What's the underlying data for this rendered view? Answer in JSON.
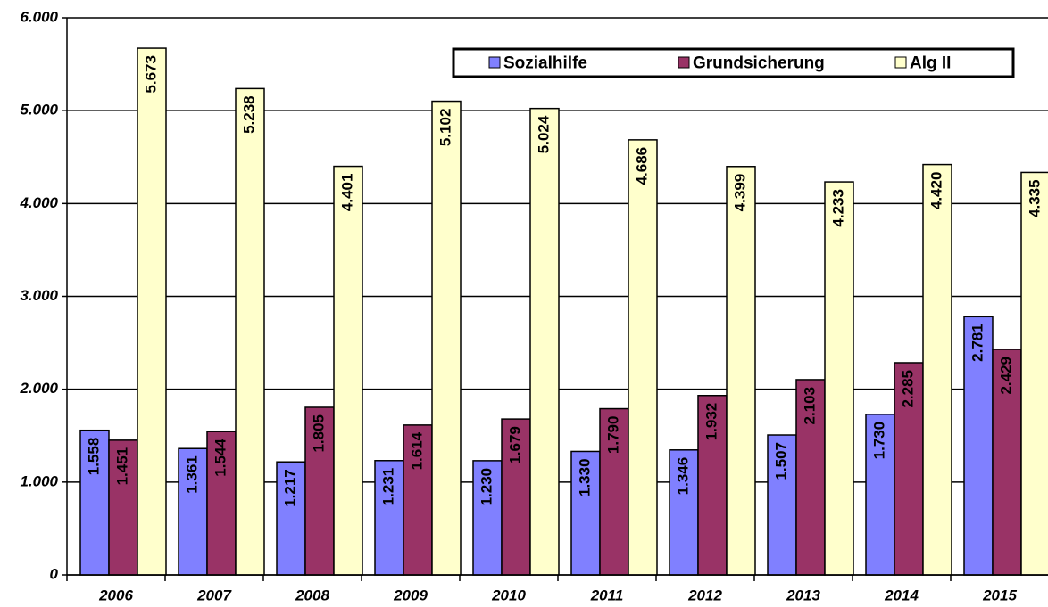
{
  "chart_data": {
    "type": "bar",
    "categories": [
      "2006",
      "2007",
      "2008",
      "2009",
      "2010",
      "2011",
      "2012",
      "2013",
      "2014",
      "2015"
    ],
    "series": [
      {
        "name": "Sozialhilfe",
        "color": "#8080ff",
        "values": [
          1558,
          1361,
          1217,
          1231,
          1230,
          1330,
          1346,
          1507,
          1730,
          2781
        ],
        "value_labels": [
          "1.558",
          "1.361",
          "1.217",
          "1.231",
          "1.230",
          "1.330",
          "1.346",
          "1.507",
          "1.730",
          "2.781"
        ]
      },
      {
        "name": "Grundsicherung",
        "color": "#993366",
        "values": [
          1451,
          1544,
          1805,
          1614,
          1679,
          1790,
          1932,
          2103,
          2285,
          2429
        ],
        "value_labels": [
          "1.451",
          "1.544",
          "1.805",
          "1.614",
          "1.679",
          "1.790",
          "1.932",
          "2.103",
          "2.285",
          "2.429"
        ]
      },
      {
        "name": "Alg II",
        "color": "#ffffcc",
        "values": [
          5673,
          5238,
          4401,
          5102,
          5024,
          4686,
          4399,
          4233,
          4420,
          4335
        ],
        "value_labels": [
          "5.673",
          "5.238",
          "4.401",
          "5.102",
          "5.024",
          "4.686",
          "4.399",
          "4.233",
          "4.420",
          "4.335"
        ]
      }
    ],
    "ylim": [
      0,
      6000
    ],
    "yticks": [
      0,
      {
        "value": 1000,
        "label": "1.000"
      },
      {
        "value": 2000,
        "label": "2.000"
      },
      {
        "value": 3000,
        "label": "3.000"
      },
      {
        "value": 4000,
        "label": "4.000"
      },
      {
        "value": 5000,
        "label": "5.000"
      },
      {
        "value": 6000,
        "label": "6.000"
      }
    ],
    "grid": true,
    "legend": "top-right"
  }
}
